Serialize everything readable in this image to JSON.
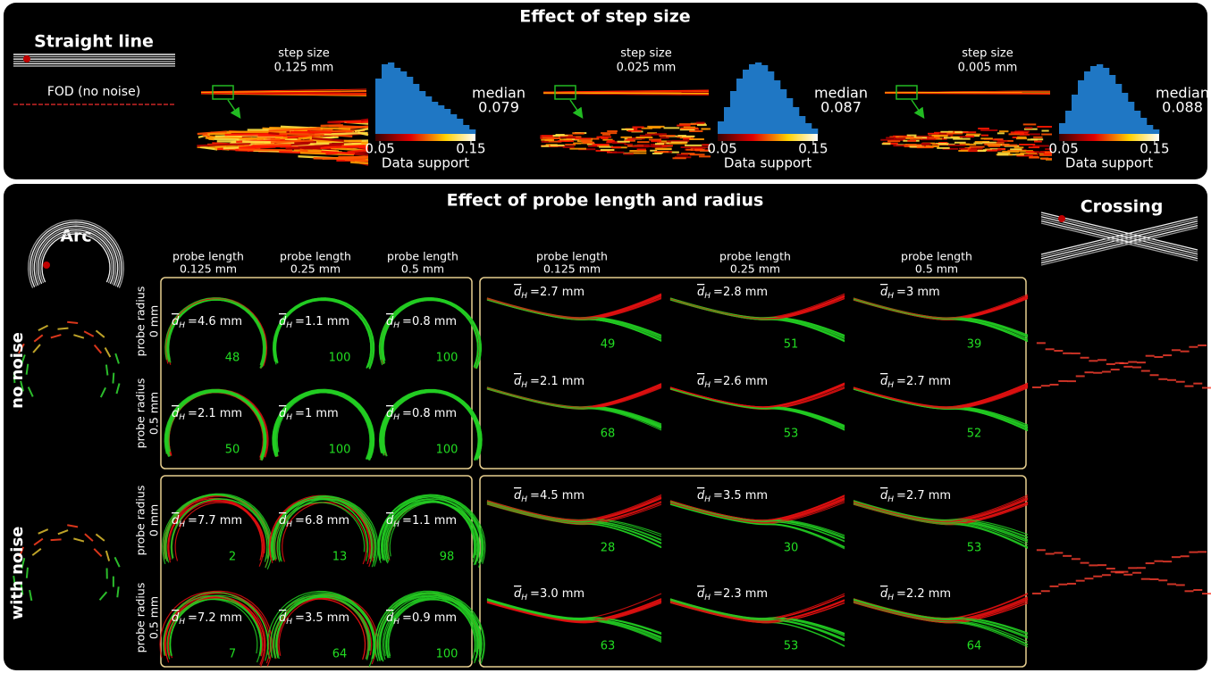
{
  "step_size": {
    "title": "Effect of step size",
    "straight_line": "Straight line",
    "fod_label": "FOD (no noise)",
    "step_label": "step size",
    "median_label": "median",
    "colorbar_label": "Data support",
    "colorbar_lim": [
      0.045,
      0.155
    ],
    "colorbar_ticks": [
      0.05,
      0.15
    ],
    "panels": [
      {
        "step": "0.125 mm",
        "median": 0.079,
        "histogram": [
          62,
          78,
          80,
          74,
          70,
          64,
          56,
          48,
          42,
          36,
          32,
          28,
          22,
          17,
          10,
          5
        ]
      },
      {
        "step": "0.025 mm",
        "median": 0.087,
        "histogram": [
          14,
          30,
          48,
          62,
          72,
          78,
          80,
          77,
          70,
          60,
          50,
          40,
          30,
          20,
          12,
          6
        ]
      },
      {
        "step": "0.005 mm",
        "median": 0.088,
        "histogram": [
          12,
          26,
          44,
          60,
          70,
          76,
          78,
          74,
          66,
          56,
          46,
          36,
          26,
          18,
          10,
          5
        ]
      }
    ]
  },
  "probe": {
    "title": "Effect of probe length and radius",
    "arc_label": "Arc",
    "crossing_label": "Crossing",
    "conditions": [
      "no noise",
      "with noise"
    ],
    "column_label": "probe length",
    "lengths": [
      "0.125 mm",
      "0.25 mm",
      "0.5 mm"
    ],
    "row_label": "probe radius",
    "radii": [
      "0 mm",
      "0.5 mm"
    ],
    "dh_symbol": {
      "base": "d",
      "sub": "H"
    },
    "arc": [
      [
        [
          {
            "dh": "=4.6 mm",
            "score": 48
          },
          {
            "dh": "=1.1 mm",
            "score": 100
          },
          {
            "dh": "=0.8 mm",
            "score": 100
          }
        ],
        [
          {
            "dh": "=2.1 mm",
            "score": 50
          },
          {
            "dh": "=1 mm",
            "score": 100
          },
          {
            "dh": "=0.8 mm",
            "score": 100
          }
        ]
      ],
      [
        [
          {
            "dh": "=7.7 mm",
            "score": 2
          },
          {
            "dh": "=6.8 mm",
            "score": 13
          },
          {
            "dh": "=1.1 mm",
            "score": 98
          }
        ],
        [
          {
            "dh": "=7.2 mm",
            "score": 7
          },
          {
            "dh": "=3.5 mm",
            "score": 64
          },
          {
            "dh": "=0.9 mm",
            "score": 100
          }
        ]
      ]
    ],
    "crossing": [
      [
        [
          {
            "dh": "=2.7 mm",
            "score": 49
          },
          {
            "dh": "=2.8 mm",
            "score": 51
          },
          {
            "dh": "=3 mm",
            "score": 39
          }
        ],
        [
          {
            "dh": "=2.1 mm",
            "score": 68
          },
          {
            "dh": "=2.6 mm",
            "score": 53
          },
          {
            "dh": "=2.7 mm",
            "score": 52
          }
        ]
      ],
      [
        [
          {
            "dh": "=4.5 mm",
            "score": 28
          },
          {
            "dh": "=3.5 mm",
            "score": 30
          },
          {
            "dh": "=2.7 mm",
            "score": 53
          }
        ],
        [
          {
            "dh": "=3.0 mm",
            "score": 63
          },
          {
            "dh": "=2.3 mm",
            "score": 53
          },
          {
            "dh": "=2.2 mm",
            "score": 64
          }
        ]
      ]
    ]
  }
}
